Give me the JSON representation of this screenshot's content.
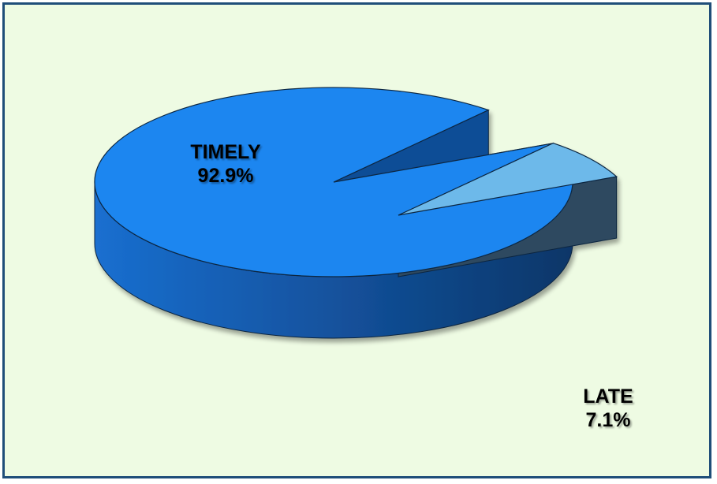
{
  "chart_data": {
    "type": "pie",
    "title": "",
    "slices": [
      {
        "name": "TIMELY",
        "value": 92.9,
        "label": "92.9%",
        "color": "#1a86f0"
      },
      {
        "name": "LATE",
        "value": 7.1,
        "label": "7.1%",
        "color": "#6db9ea"
      }
    ],
    "style": "3d-exploded",
    "exploded_slice": "LATE"
  },
  "colors": {
    "background": "#eefbe3",
    "border": "#1f4e79",
    "timely_side": "#0f4d96",
    "late_side": "#2d4a60"
  }
}
